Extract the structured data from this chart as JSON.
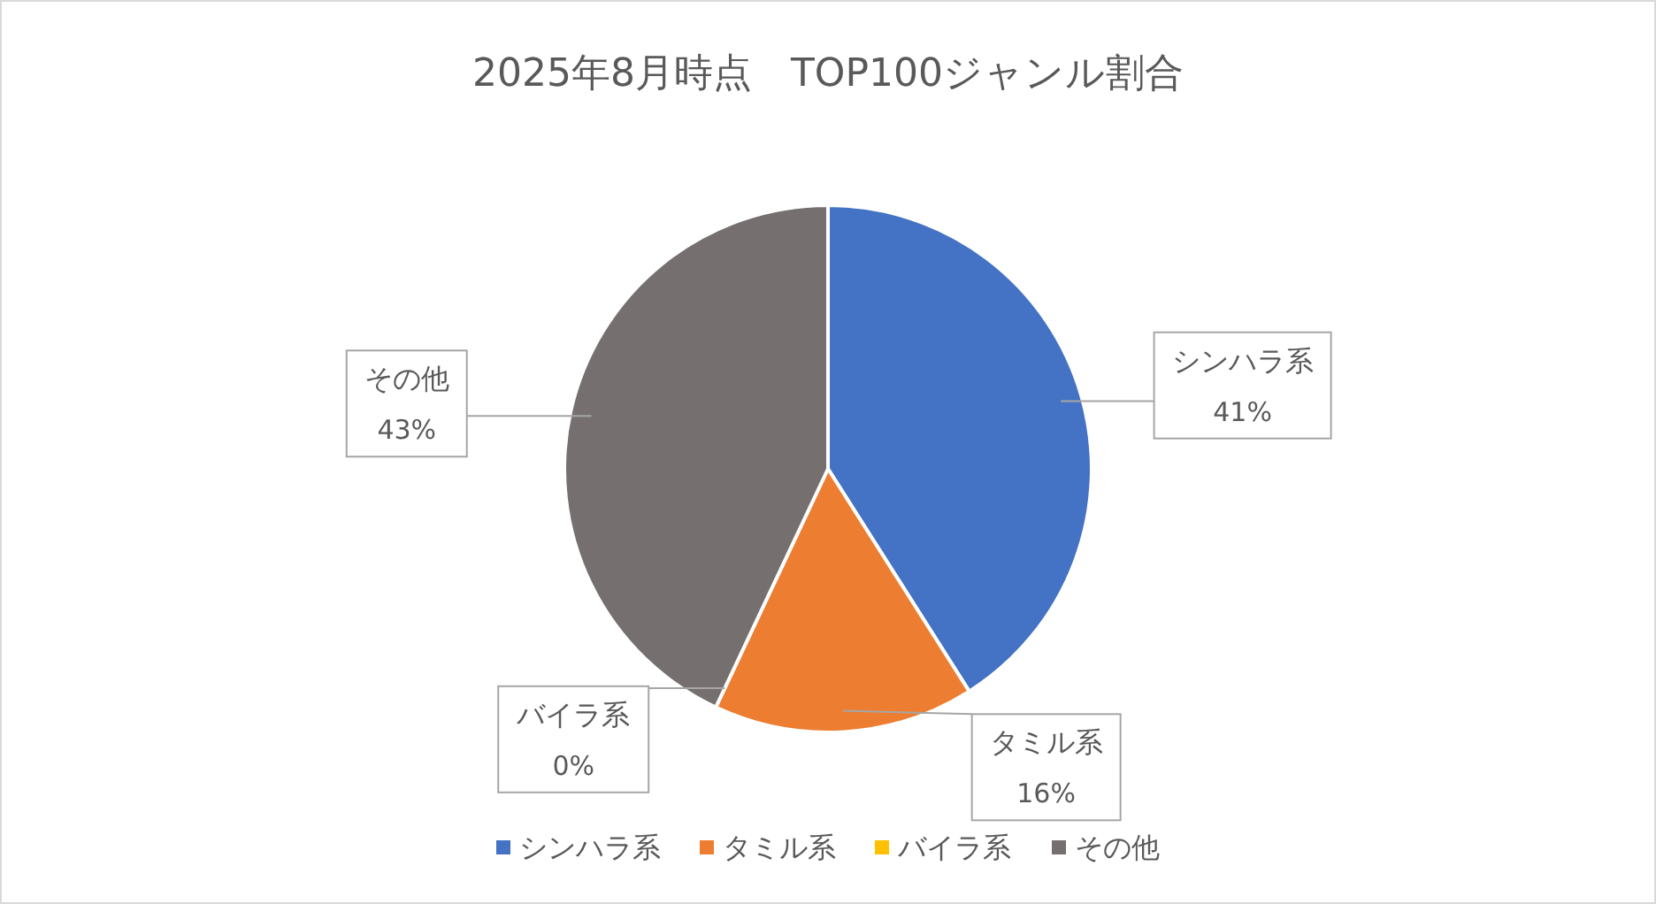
{
  "chart_data": {
    "type": "pie",
    "title": "2025年8月時点　TOP100ジャンル割合",
    "categories": [
      "シンハラ系",
      "タミル系",
      "バイラ系",
      "その他"
    ],
    "values": [
      41,
      16,
      0,
      43
    ],
    "colors": [
      "#4472c4",
      "#ed7d31",
      "#ffc000",
      "#75706f"
    ],
    "value_labels": [
      "41%",
      "16%",
      "0%",
      "43%"
    ],
    "legend": "bottom"
  }
}
